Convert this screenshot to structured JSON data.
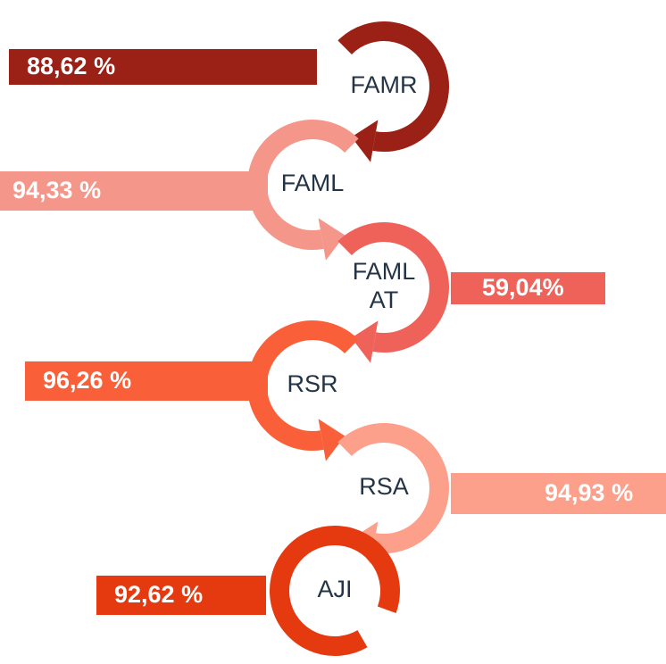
{
  "items": [
    {
      "label_lines": [
        "FAMR"
      ],
      "value": "88,62 %"
    },
    {
      "label_lines": [
        "FAML"
      ],
      "value": "94,33 %"
    },
    {
      "label_lines": [
        "FAML",
        "AT"
      ],
      "value": "59,04%"
    },
    {
      "label_lines": [
        "RSR"
      ],
      "value": "96,26 %"
    },
    {
      "label_lines": [
        "RSA"
      ],
      "value": "94,93 %"
    },
    {
      "label_lines": [
        "AJI"
      ],
      "value": "92,62 %"
    }
  ]
}
